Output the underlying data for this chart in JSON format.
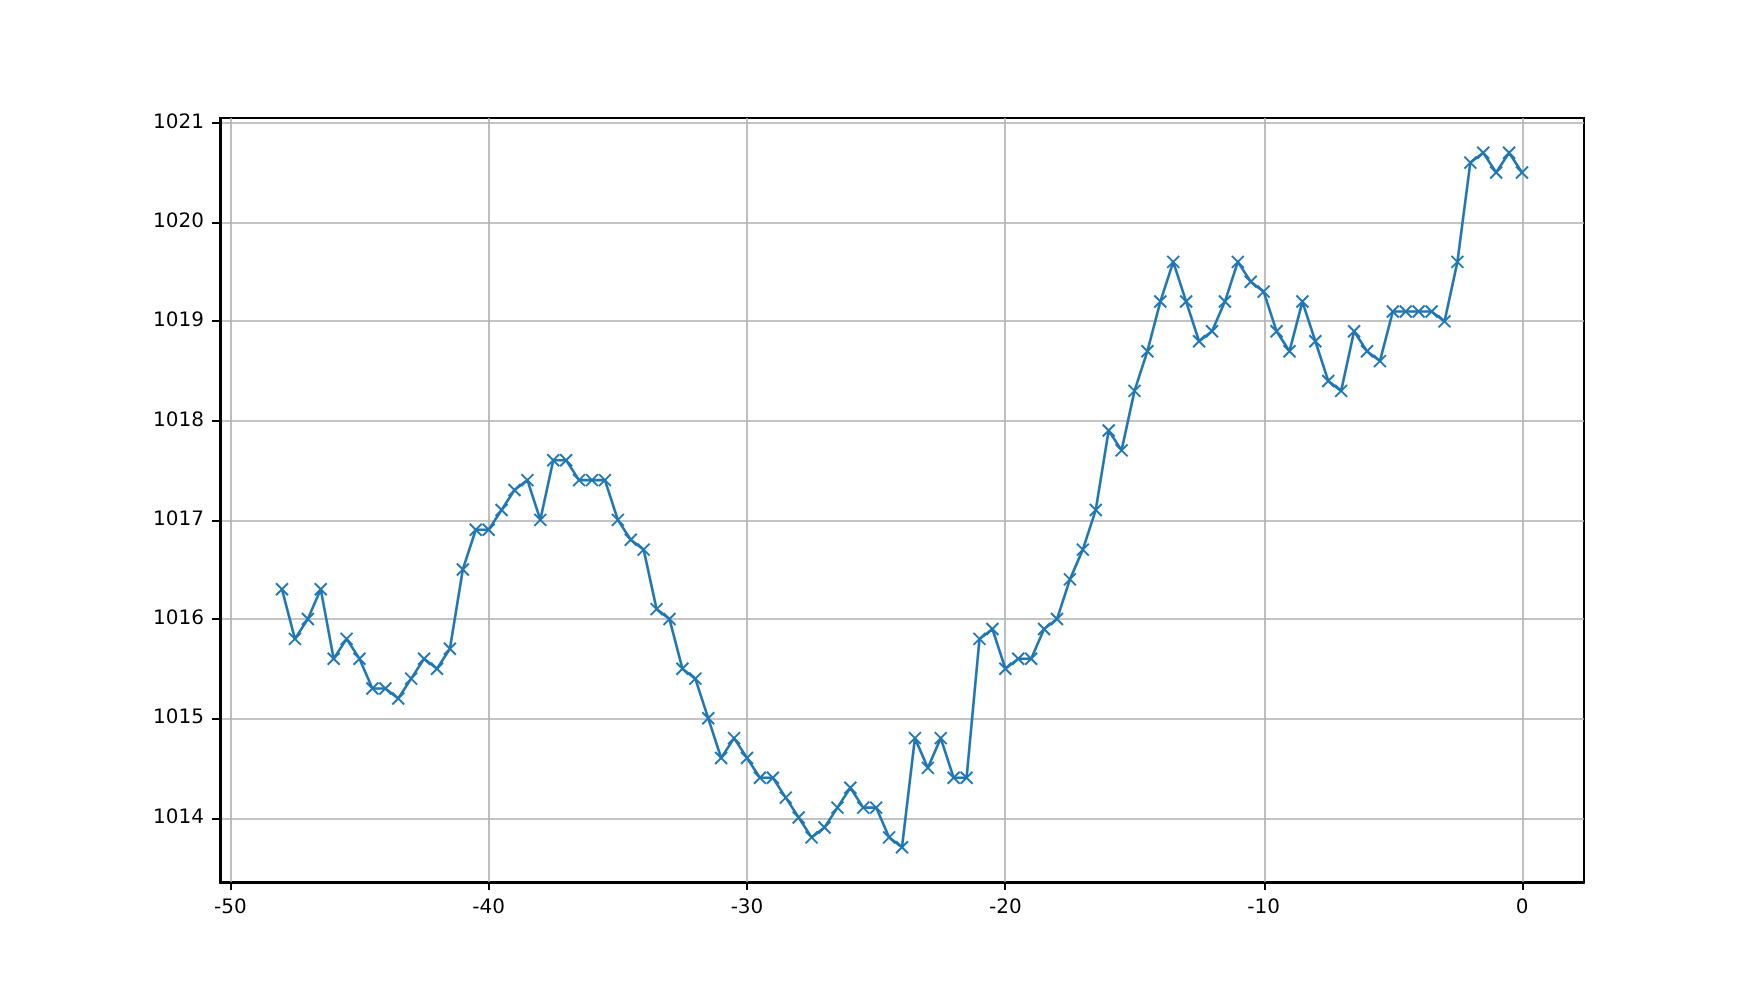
{
  "chart_data": {
    "type": "line",
    "x": [
      -48,
      -47.5,
      -47,
      -46.5,
      -46,
      -45.5,
      -45,
      -44.5,
      -44,
      -43.5,
      -43,
      -42.5,
      -42,
      -41.5,
      -41,
      -40.5,
      -40,
      -39.5,
      -39,
      -38.5,
      -38,
      -37.5,
      -37,
      -36.5,
      -36,
      -35.5,
      -35,
      -34.5,
      -34,
      -33.5,
      -33,
      -32.5,
      -32,
      -31.5,
      -31,
      -30.5,
      -30,
      -29.5,
      -29,
      -28.5,
      -28,
      -27.5,
      -27,
      -26.5,
      -26,
      -25.5,
      -25,
      -24.5,
      -24,
      -23.5,
      -23,
      -22.5,
      -22,
      -21.5,
      -21,
      -20.5,
      -20,
      -19.5,
      -19,
      -18.5,
      -18,
      -17.5,
      -17,
      -16.5,
      -16,
      -15.5,
      -15,
      -14.5,
      -14,
      -13.5,
      -13,
      -12.5,
      -12,
      -11.5,
      -11,
      -10.5,
      -10,
      -9.5,
      -9,
      -8.5,
      -8,
      -7.5,
      -7,
      -6.5,
      -6,
      -5.5,
      -5,
      -4.5,
      -4,
      -3.5,
      -3,
      -2.5,
      -2,
      -1.5,
      -1,
      -0.5,
      0
    ],
    "series": [
      {
        "color": "#1f77b4",
        "values": [
          1016.3,
          1015.8,
          1016.0,
          1016.3,
          1015.6,
          1015.8,
          1015.6,
          1015.3,
          1015.3,
          1015.2,
          1015.4,
          1015.6,
          1015.5,
          1015.7,
          1016.5,
          1016.9,
          1016.9,
          1017.1,
          1017.3,
          1017.4,
          1017.0,
          1017.6,
          1017.6,
          1017.4,
          1017.4,
          1017.4,
          1017.0,
          1016.8,
          1016.7,
          1016.1,
          1016.0,
          1015.5,
          1015.4,
          1015.0,
          1014.6,
          1014.8,
          1014.6,
          1014.4,
          1014.4,
          1014.2,
          1014.0,
          1013.8,
          1013.9,
          1014.1,
          1014.3,
          1014.1,
          1014.1,
          1013.8,
          1013.7,
          1014.8,
          1014.5,
          1014.8,
          1014.4,
          1014.4,
          1015.8,
          1015.9,
          1015.5,
          1015.6,
          1015.6,
          1015.9,
          1016.0,
          1016.4,
          1016.7,
          1017.1,
          1017.9,
          1017.7,
          1018.3,
          1018.7,
          1019.2,
          1019.6,
          1019.2,
          1018.8,
          1018.9,
          1019.2,
          1019.6,
          1019.4,
          1019.3,
          1018.9,
          1018.7,
          1019.2,
          1018.8,
          1018.4,
          1018.3,
          1018.9,
          1018.7,
          1018.6,
          1019.1,
          1019.1,
          1019.1,
          1019.1,
          1019.0,
          1019.6,
          1020.6,
          1020.7,
          1020.5,
          1020.7,
          1020.5
        ]
      }
    ],
    "xlim": [
      -50.4,
      2.4
    ],
    "xticks": [
      -50,
      -40,
      -30,
      -20,
      -10,
      0
    ],
    "ylim": [
      1013.35,
      1021.05
    ],
    "yticks": [
      1014,
      1015,
      1016,
      1017,
      1018,
      1019,
      1020,
      1021
    ],
    "grid": true,
    "marker": "cross",
    "line_style": "solid"
  }
}
